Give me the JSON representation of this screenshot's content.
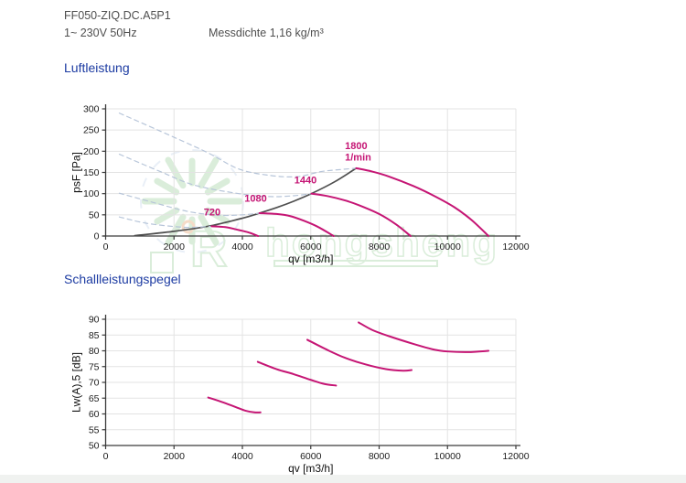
{
  "header": {
    "model": "FF050-ZIQ.DC.A5P1",
    "voltage": "1~ 230V 50Hz",
    "density": "Messdichte 1,16 kg/m³"
  },
  "sections": {
    "air_title": "Luftleistung",
    "sound_title": "Schallleistungspegel"
  },
  "watermark": {
    "text": "hongsheng",
    "logo_letter": "R"
  },
  "colors": {
    "curve": "#c51574",
    "system": "#4f4f4f",
    "dashed": "#b7c5d9",
    "grid": "#e3e3e3",
    "axis": "#3a3a3a",
    "title": "#1c3ba2",
    "header_text": "#4f4f4f",
    "watermark_green": "#86c586",
    "watermark_orange": "#e08a4a",
    "watermark_blue": "#b9cde6"
  },
  "chart_data": [
    {
      "type": "line",
      "title": "Luftleistung",
      "xlabel": "qv [m3/h]",
      "ylabel": "psF [Pa]",
      "xlim": [
        0,
        12000
      ],
      "ylim": [
        0,
        300
      ],
      "xticks": [
        0,
        2000,
        4000,
        6000,
        8000,
        10000,
        12000
      ],
      "yticks": [
        0,
        50,
        100,
        150,
        200,
        250,
        300
      ],
      "grid": true,
      "legend_position": "none",
      "series": [
        {
          "name": "system-curve",
          "role": "system",
          "points": [
            [
              850,
              1
            ],
            [
              2000,
              11
            ],
            [
              3000,
              23
            ],
            [
              4000,
              42
            ],
            [
              4500,
              54
            ],
            [
              5000,
              67
            ],
            [
              5500,
              82
            ],
            [
              6020,
              100
            ],
            [
              6700,
              128
            ],
            [
              7330,
              160
            ]
          ]
        },
        {
          "name": "720-stall-dashed",
          "role": "dashed",
          "points": [
            [
              400,
              45
            ],
            [
              1200,
              30
            ],
            [
              2200,
              21
            ],
            [
              2700,
              21
            ],
            [
              3100,
              23
            ]
          ]
        },
        {
          "name": "1080-stall-dashed",
          "role": "dashed",
          "points": [
            [
              400,
              101
            ],
            [
              1400,
              79
            ],
            [
              2400,
              58
            ],
            [
              3300,
              49
            ],
            [
              4000,
              50
            ],
            [
              4500,
              54
            ]
          ]
        },
        {
          "name": "1440-stall-dashed",
          "role": "dashed",
          "points": [
            [
              400,
              193
            ],
            [
              1600,
              152
            ],
            [
              2600,
              120
            ],
            [
              3900,
              100
            ],
            [
              4800,
              93
            ],
            [
              5500,
              95
            ],
            [
              6020,
              100
            ]
          ]
        },
        {
          "name": "1800-stall-dashed",
          "role": "dashed",
          "points": [
            [
              400,
              290
            ],
            [
              2000,
              233
            ],
            [
              3000,
              196
            ],
            [
              3900,
              158
            ],
            [
              4800,
              143
            ],
            [
              5600,
              140
            ],
            [
              6300,
              152
            ],
            [
              6900,
              157
            ],
            [
              7330,
              160
            ]
          ]
        },
        {
          "name": "720",
          "role": "fan",
          "points": [
            [
              3100,
              23
            ],
            [
              3500,
              21
            ],
            [
              3900,
              14
            ],
            [
              4200,
              8
            ],
            [
              4460,
              0
            ]
          ]
        },
        {
          "name": "1080",
          "role": "fan",
          "points": [
            [
              4500,
              54
            ],
            [
              5000,
              52
            ],
            [
              5400,
              47
            ],
            [
              5800,
              36
            ],
            [
              6200,
              22
            ],
            [
              6670,
              0
            ]
          ]
        },
        {
          "name": "1440",
          "role": "fan",
          "points": [
            [
              6020,
              100
            ],
            [
              6500,
              94
            ],
            [
              7000,
              84
            ],
            [
              7400,
              73
            ],
            [
              8000,
              52
            ],
            [
              8500,
              27
            ],
            [
              8920,
              0
            ]
          ]
        },
        {
          "name": "1800",
          "role": "fan",
          "points": [
            [
              7330,
              160
            ],
            [
              7800,
              152
            ],
            [
              8300,
              140
            ],
            [
              9000,
              118
            ],
            [
              9600,
              95
            ],
            [
              10200,
              68
            ],
            [
              10700,
              38
            ],
            [
              11200,
              0
            ]
          ]
        }
      ],
      "labels": [
        {
          "text": "720",
          "x": 2870,
          "y": 49
        },
        {
          "text": "1080",
          "x": 4060,
          "y": 81
        },
        {
          "text": "1440",
          "x": 5520,
          "y": 124
        },
        {
          "text": "1800",
          "x": 7000,
          "y": 205
        },
        {
          "text": "1/min",
          "x": 7000,
          "y": 178
        }
      ]
    },
    {
      "type": "line",
      "title": "Schallleistungspegel",
      "xlabel": "qv [m3/h]",
      "ylabel": "Lw(A),5 [dB]",
      "xlim": [
        0,
        12000
      ],
      "ylim": [
        50,
        90
      ],
      "xticks": [
        0,
        2000,
        4000,
        6000,
        8000,
        10000,
        12000
      ],
      "yticks": [
        50,
        55,
        60,
        65,
        70,
        75,
        80,
        85,
        90
      ],
      "grid": true,
      "legend_position": "none",
      "series": [
        {
          "name": "720",
          "role": "fan",
          "points": [
            [
              3000,
              65.2
            ],
            [
              3400,
              63.8
            ],
            [
              3800,
              62.2
            ],
            [
              4100,
              61.0
            ],
            [
              4350,
              60.5
            ],
            [
              4530,
              60.5
            ]
          ]
        },
        {
          "name": "1080",
          "role": "fan",
          "points": [
            [
              4450,
              76.5
            ],
            [
              5000,
              74.2
            ],
            [
              5500,
              72.6
            ],
            [
              6000,
              70.8
            ],
            [
              6400,
              69.5
            ],
            [
              6740,
              69.0
            ]
          ]
        },
        {
          "name": "1440",
          "role": "fan",
          "points": [
            [
              5900,
              83.5
            ],
            [
              6500,
              80.2
            ],
            [
              7000,
              77.8
            ],
            [
              7600,
              75.7
            ],
            [
              8200,
              74.2
            ],
            [
              8700,
              73.7
            ],
            [
              8950,
              73.9
            ]
          ]
        },
        {
          "name": "1800",
          "role": "fan",
          "points": [
            [
              7400,
              89.0
            ],
            [
              7800,
              86.6
            ],
            [
              8300,
              84.6
            ],
            [
              9000,
              82.2
            ],
            [
              9600,
              80.4
            ],
            [
              10000,
              79.8
            ],
            [
              10600,
              79.6
            ],
            [
              11200,
              80.0
            ]
          ]
        }
      ],
      "labels": []
    }
  ]
}
